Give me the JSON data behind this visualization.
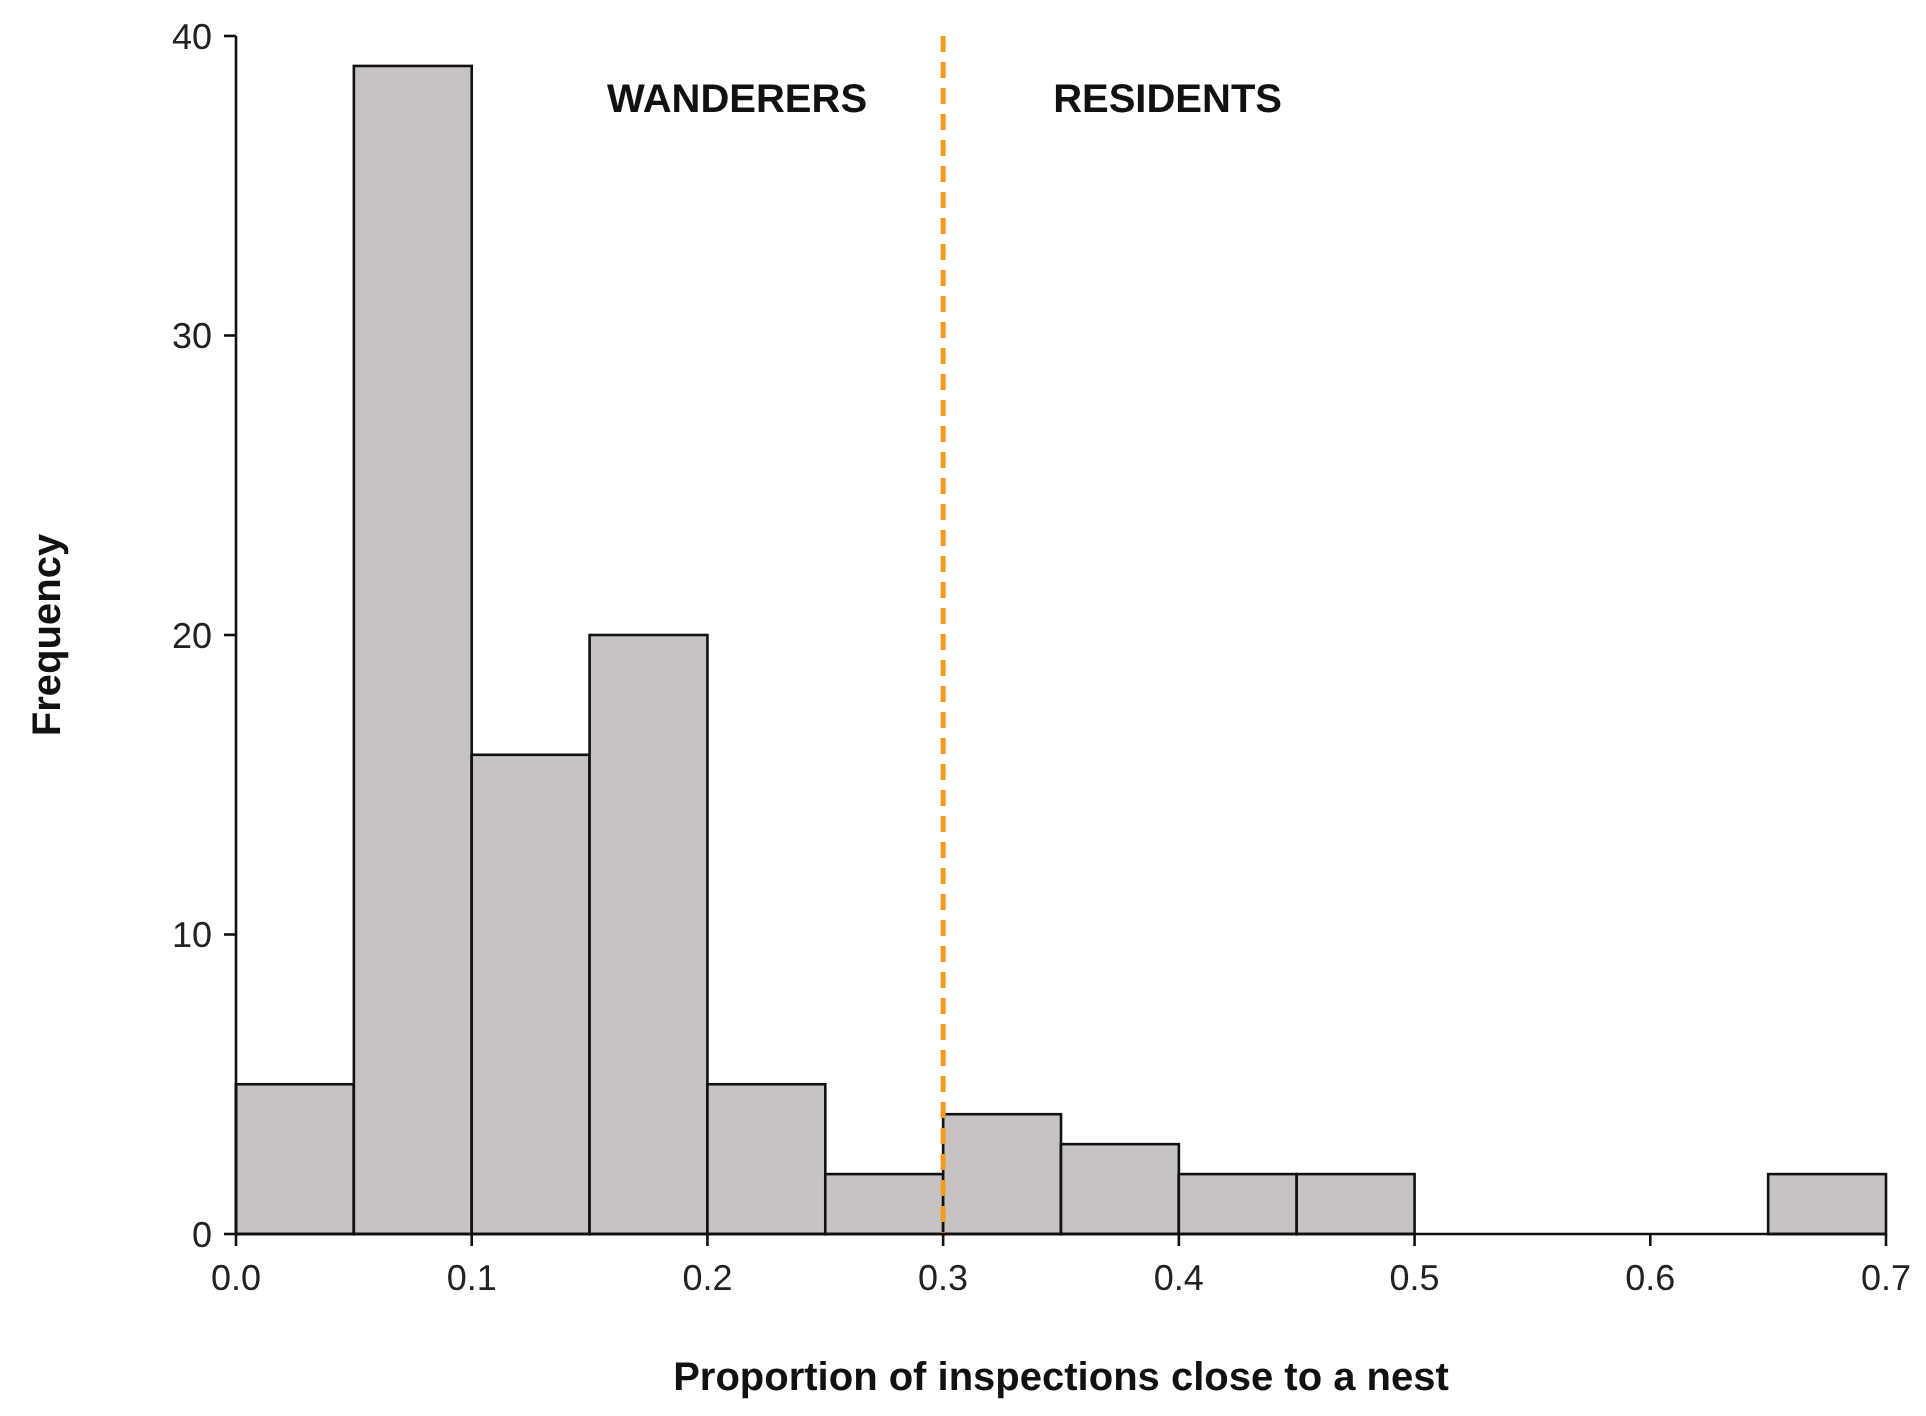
{
  "chart_data": {
    "type": "histogram",
    "xlabel": "Proportion of inspections close to a nest",
    "ylabel": "Frequency",
    "bins": [
      0,
      0.05,
      0.1,
      0.15,
      0.2,
      0.25,
      0.3,
      0.35,
      0.4,
      0.45,
      0.5,
      0.55,
      0.6,
      0.65,
      0.7
    ],
    "values": [
      5,
      39,
      16,
      20,
      5,
      2,
      4,
      3,
      2,
      2,
      0,
      0,
      0,
      2
    ],
    "color": "#c7c3c3",
    "xlim": [
      0,
      0.7
    ],
    "xticks": [
      {
        "value": 0,
        "label": "0.0"
      },
      0.1,
      0.2,
      0.3,
      0.4,
      0.5,
      0.6,
      0.7
    ],
    "ylim": [
      0,
      40
    ],
    "yticks": [
      0,
      10,
      20,
      30,
      40
    ],
    "ref_lines": [
      {
        "axis": "x",
        "value": 0.3,
        "color": "#f39c1f",
        "line_style": "dashed"
      }
    ],
    "annotations": [
      "WANDERERS",
      "RESIDENTS"
    ],
    "grid": false
  }
}
